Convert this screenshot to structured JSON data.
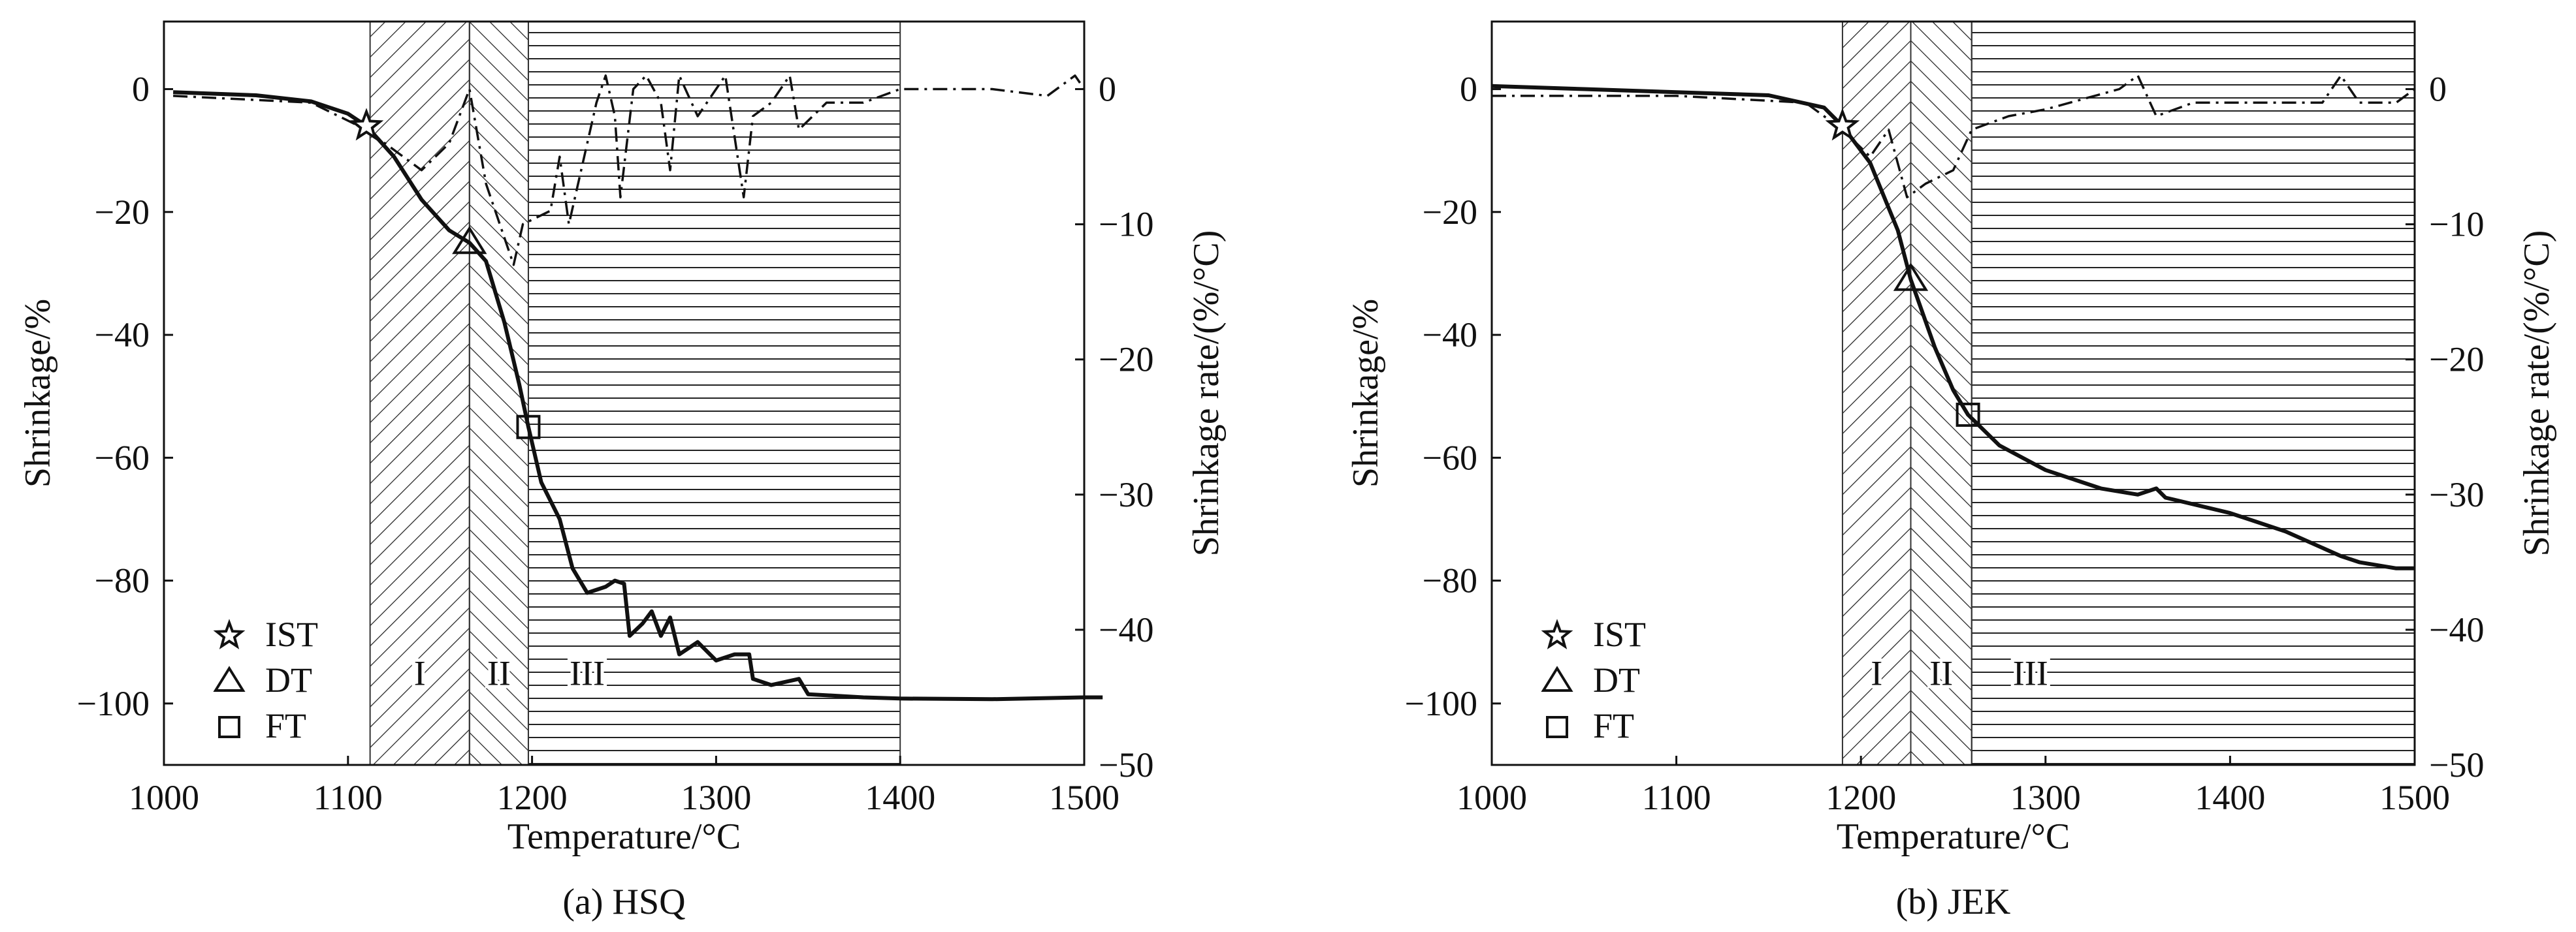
{
  "chart_data": [
    {
      "type": "line",
      "caption": "(a) HSQ",
      "xlabel": "Temperature/°C",
      "ylabel": "Shrinkage/%",
      "y2label": "Shrinkage rate/(%/°C)",
      "xlim": [
        1000,
        1500
      ],
      "ylim": [
        -110,
        11
      ],
      "y2lim": [
        -50,
        5
      ],
      "xticks": [
        1000,
        1100,
        1200,
        1300,
        1400,
        1500
      ],
      "yticks": [
        0,
        -20,
        -40,
        -60,
        -80,
        -100
      ],
      "y2ticks": [
        0,
        -10,
        -20,
        -30,
        -40,
        -50
      ],
      "zones": [
        {
          "label": "I",
          "from": 1112,
          "to": 1166,
          "hatch": "diagonal-right"
        },
        {
          "label": "II",
          "from": 1166,
          "to": 1198,
          "hatch": "diagonal-left"
        },
        {
          "label": "III",
          "from": 1198,
          "to": 1400,
          "hatch": "horizontal"
        }
      ],
      "legend": [
        {
          "marker": "star",
          "label": "IST"
        },
        {
          "marker": "triangle",
          "label": "DT"
        },
        {
          "marker": "square",
          "label": "FT"
        }
      ],
      "legend_position": "bottom-left",
      "markers": [
        {
          "type": "star",
          "x": 1110,
          "y": -6
        },
        {
          "type": "triangle",
          "x": 1166,
          "y": -25
        },
        {
          "type": "square",
          "x": 1198,
          "y": -55
        }
      ],
      "series": [
        {
          "axis": "left",
          "style": "solid",
          "x": [
            1005,
            1050,
            1080,
            1100,
            1110,
            1125,
            1140,
            1155,
            1166,
            1175,
            1185,
            1193,
            1198,
            1205,
            1215,
            1222,
            1230,
            1240,
            1245,
            1250,
            1253,
            1260,
            1265,
            1270,
            1275,
            1280,
            1290,
            1300,
            1310,
            1318,
            1320,
            1330,
            1345,
            1350,
            1380,
            1400,
            1450,
            1500,
            1510
          ],
          "y": [
            -0.5,
            -1,
            -2,
            -4,
            -6,
            -11,
            -18,
            -23,
            -25,
            -28,
            -38,
            -48,
            -55,
            -64,
            -70,
            -78,
            -82,
            -81,
            -80,
            -80.5,
            -89,
            -87,
            -85,
            -89,
            -86,
            -92,
            -90,
            -93,
            -92,
            -92,
            -96,
            -97,
            -96,
            -98.5,
            -99,
            -99.2,
            -99.3,
            -99,
            -99
          ]
        },
        {
          "axis": "right",
          "style": "dash-dot",
          "x": [
            1005,
            1080,
            1110,
            1140,
            1155,
            1166,
            1175,
            1190,
            1195,
            1210,
            1215,
            1220,
            1225,
            1235,
            1240,
            1245,
            1248,
            1255,
            1262,
            1270,
            1275,
            1280,
            1290,
            1300,
            1305,
            1315,
            1320,
            1330,
            1340,
            1345,
            1360,
            1380,
            1400,
            1450,
            1480,
            1495,
            1500
          ],
          "y": [
            -0.5,
            -1,
            -3,
            -6,
            -4,
            0,
            -7,
            -13,
            -10,
            -9,
            -5,
            -10,
            -7,
            -1,
            1,
            -2,
            -8,
            0,
            1,
            -1,
            -6,
            1,
            -2,
            0,
            1,
            -8,
            -2,
            -1,
            1,
            -3,
            -1,
            -1,
            0,
            0,
            -0.5,
            1,
            0
          ]
        }
      ]
    },
    {
      "type": "line",
      "caption": "(b) JEK",
      "xlabel": "Temperature/°C",
      "ylabel": "Shrinkage/%",
      "y2label": "Shrinkage rate/(%/°C)",
      "xlim": [
        1000,
        1500
      ],
      "ylim": [
        -110,
        11
      ],
      "y2lim": [
        -50,
        5
      ],
      "xticks": [
        1000,
        1100,
        1200,
        1300,
        1400,
        1500
      ],
      "yticks": [
        0,
        -20,
        -40,
        -60,
        -80,
        -100
      ],
      "y2ticks": [
        0,
        -10,
        -20,
        -30,
        -40,
        -50
      ],
      "zones": [
        {
          "label": "I",
          "from": 1190,
          "to": 1227,
          "hatch": "diagonal-right"
        },
        {
          "label": "II",
          "from": 1227,
          "to": 1260,
          "hatch": "diagonal-left"
        },
        {
          "label": "III",
          "from": 1260,
          "to": 1500,
          "hatch": "horizontal"
        }
      ],
      "legend": [
        {
          "marker": "star",
          "label": "IST"
        },
        {
          "marker": "triangle",
          "label": "DT"
        },
        {
          "marker": "square",
          "label": "FT"
        }
      ],
      "legend_position": "bottom-left",
      "markers": [
        {
          "type": "star",
          "x": 1190,
          "y": -6
        },
        {
          "type": "triangle",
          "x": 1227,
          "y": -31
        },
        {
          "type": "square",
          "x": 1258,
          "y": -53
        }
      ],
      "series": [
        {
          "axis": "left",
          "style": "solid",
          "x": [
            1000,
            1050,
            1100,
            1150,
            1180,
            1190,
            1205,
            1220,
            1227,
            1240,
            1250,
            1258,
            1275,
            1300,
            1330,
            1350,
            1360,
            1365,
            1400,
            1430,
            1460,
            1470,
            1490,
            1500
          ],
          "y": [
            0.5,
            0,
            -0.5,
            -1,
            -3,
            -6,
            -12,
            -23,
            -31,
            -42,
            -49,
            -53,
            -58,
            -62,
            -65,
            -66,
            -65,
            -66.5,
            -69,
            -72,
            -76,
            -77,
            -78,
            -78
          ]
        },
        {
          "axis": "right",
          "style": "dash-dot",
          "x": [
            1000,
            1100,
            1170,
            1190,
            1205,
            1215,
            1225,
            1235,
            1250,
            1260,
            1280,
            1300,
            1340,
            1350,
            1360,
            1380,
            1420,
            1450,
            1460,
            1470,
            1490,
            1500
          ],
          "y": [
            -0.5,
            -0.5,
            -1,
            -3,
            -5,
            -3,
            -8,
            -7,
            -6,
            -3,
            -2,
            -1.5,
            0,
            1,
            -2,
            -1,
            -1,
            -1,
            1,
            -1,
            -1,
            0
          ]
        }
      ]
    }
  ]
}
